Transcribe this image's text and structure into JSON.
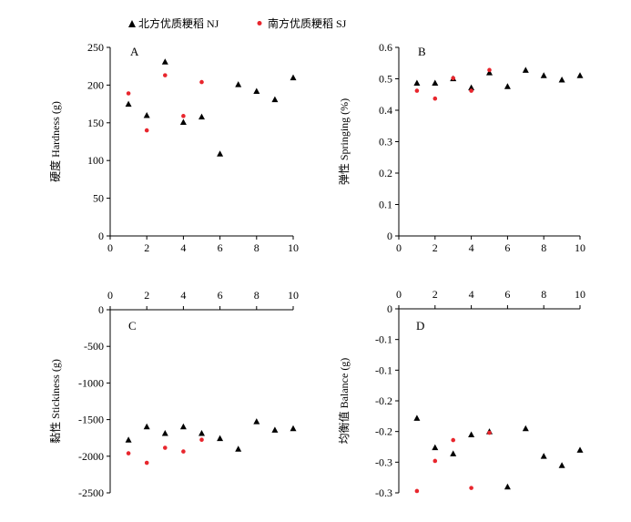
{
  "legend": {
    "nj_label": "北方优质粳稻 NJ",
    "sj_label": "南方优质粳稻 SJ"
  },
  "colors": {
    "nj": "#000000",
    "sj": "#e8262d"
  },
  "chart_data": [
    {
      "id": "A",
      "type": "scatter",
      "panel_letter": "A",
      "ylabel": "硬度 Hardness (g)",
      "xlabel": "",
      "xlim": [
        0,
        10
      ],
      "ylim": [
        0,
        250
      ],
      "xticks": [
        0,
        2,
        4,
        6,
        8,
        10
      ],
      "yticks": [
        0,
        50,
        100,
        150,
        200,
        250
      ],
      "x_axis_position": "bottom",
      "series": [
        {
          "name": "北方优质粳稻 NJ",
          "marker": "triangle",
          "x": [
            1,
            2,
            3,
            4,
            5,
            6,
            7,
            8,
            9,
            10
          ],
          "y": [
            175,
            160,
            231,
            151,
            158,
            109,
            201,
            192,
            181,
            210
          ]
        },
        {
          "name": "南方优质粳稻 SJ",
          "marker": "circle",
          "x": [
            1,
            2,
            3,
            4,
            5
          ],
          "y": [
            189,
            140,
            213,
            159,
            204
          ]
        }
      ]
    },
    {
      "id": "B",
      "type": "scatter",
      "panel_letter": "B",
      "ylabel": "弹性 Springing (%)",
      "xlabel": "",
      "xlim": [
        0,
        10
      ],
      "ylim": [
        0,
        0.6
      ],
      "xticks": [
        0,
        2,
        4,
        6,
        8,
        10
      ],
      "yticks": [
        0,
        0.1,
        0.2,
        0.3,
        0.4,
        0.5,
        0.6
      ],
      "x_axis_position": "bottom",
      "series": [
        {
          "name": "北方优质粳稻 NJ",
          "marker": "triangle",
          "x": [
            1,
            2,
            3,
            4,
            5,
            6,
            7,
            8,
            9,
            10
          ],
          "y": [
            0.487,
            0.487,
            0.501,
            0.472,
            0.52,
            0.476,
            0.528,
            0.511,
            0.497,
            0.511
          ]
        },
        {
          "name": "南方优质粳稻 SJ",
          "marker": "circle",
          "x": [
            1,
            2,
            3,
            4,
            5
          ],
          "y": [
            0.462,
            0.437,
            0.502,
            0.462,
            0.528
          ]
        }
      ]
    },
    {
      "id": "C",
      "type": "scatter",
      "panel_letter": "C",
      "ylabel": "黏性 Stickiness (g)",
      "xlabel": "",
      "xlim": [
        0,
        10
      ],
      "ylim": [
        -2500,
        0
      ],
      "xticks": [
        0,
        2,
        4,
        6,
        8,
        10
      ],
      "yticks": [
        0,
        -500,
        -1000,
        -1500,
        -2000,
        -2500
      ],
      "x_axis_position": "top",
      "series": [
        {
          "name": "北方优质粳稻 NJ",
          "marker": "triangle",
          "x": [
            1,
            2,
            3,
            4,
            5,
            6,
            7,
            8,
            9,
            10
          ],
          "y": [
            -1775,
            -1595,
            -1685,
            -1595,
            -1685,
            -1755,
            -1900,
            -1525,
            -1640,
            -1620
          ]
        },
        {
          "name": "南方优质粳稻 SJ",
          "marker": "circle",
          "x": [
            1,
            2,
            3,
            4,
            5
          ],
          "y": [
            -1960,
            -2090,
            -1885,
            -1935,
            -1775
          ]
        }
      ]
    },
    {
      "id": "D",
      "type": "scatter",
      "panel_letter": "D",
      "ylabel": "均衡值 Balance (g)",
      "xlabel": "",
      "xlim": [
        0,
        10
      ],
      "ylim": [
        -0.3,
        0
      ],
      "xticks": [
        0,
        2,
        4,
        6,
        8,
        10
      ],
      "yticks": [
        0,
        -0.05,
        -0.1,
        -0.15,
        -0.2,
        -0.25,
        -0.3
      ],
      "ytick_labels": [
        "0",
        "-0.1",
        "-0.1",
        "-0.2",
        "-0.2",
        "-0.3",
        "-0.3"
      ],
      "x_axis_position": "top",
      "series": [
        {
          "name": "北方优质粳稻 NJ",
          "marker": "triangle",
          "x": [
            1,
            2,
            3,
            4,
            5,
            6,
            7,
            8,
            9,
            10
          ],
          "y": [
            -0.178,
            -0.226,
            -0.236,
            -0.205,
            -0.2,
            -0.29,
            -0.195,
            -0.24,
            -0.255,
            -0.23
          ]
        },
        {
          "name": "南方优质粳稻 SJ",
          "marker": "circle",
          "x": [
            1,
            2,
            3,
            4,
            5
          ],
          "y": [
            -0.297,
            -0.248,
            -0.214,
            -0.292,
            -0.202
          ]
        }
      ]
    }
  ]
}
